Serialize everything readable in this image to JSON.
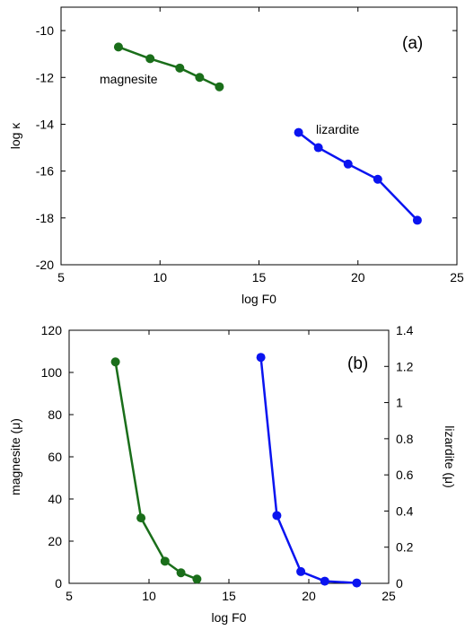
{
  "chart_data": [
    {
      "type": "line",
      "panel_label": "(a)",
      "xlabel": "log F0",
      "ylabel": "log κ",
      "xlim": [
        5,
        25
      ],
      "ylim": [
        -20,
        -9
      ],
      "xticks": [
        5,
        10,
        15,
        20,
        25
      ],
      "yticks": [
        -10,
        -12,
        -14,
        -16,
        -18,
        -20
      ],
      "grid": false,
      "series": [
        {
          "name": "magnesite",
          "color": "#1a6e1a",
          "x": [
            7.9,
            9.5,
            11.0,
            12.0,
            13.0
          ],
          "y": [
            -10.7,
            -11.2,
            -11.6,
            -12.0,
            -12.4
          ]
        },
        {
          "name": "lizardite",
          "color": "#0a14f0",
          "x": [
            17.0,
            18.0,
            19.5,
            21.0,
            23.0
          ],
          "y": [
            -14.35,
            -15.0,
            -15.7,
            -16.35,
            -18.1
          ]
        }
      ]
    },
    {
      "type": "line",
      "panel_label": "(b)",
      "xlabel": "log F0",
      "ylabel_left": "magnesite (μ)",
      "ylabel_right": "lizardite (μ)",
      "xlim": [
        5,
        25
      ],
      "ylim_left": [
        0,
        120
      ],
      "ylim_right": [
        0,
        1.4
      ],
      "xticks": [
        5,
        10,
        15,
        20,
        25
      ],
      "yticks_left": [
        0,
        20,
        40,
        60,
        80,
        100,
        120
      ],
      "yticks_right": [
        0,
        0.2,
        0.4,
        0.6,
        0.8,
        1,
        1.2,
        1.4
      ],
      "grid": false,
      "series": [
        {
          "name": "magnesite",
          "axis": "left",
          "color": "#1a6e1a",
          "x": [
            7.9,
            9.5,
            11.0,
            12.0,
            13.0
          ],
          "y": [
            105,
            31,
            10.5,
            5,
            2
          ]
        },
        {
          "name": "lizardite",
          "axis": "right",
          "color": "#0a14f0",
          "x": [
            17.0,
            18.0,
            19.5,
            21.0,
            23.0
          ],
          "y": [
            1.25,
            0.375,
            0.065,
            0.012,
            0.002
          ]
        }
      ]
    }
  ]
}
